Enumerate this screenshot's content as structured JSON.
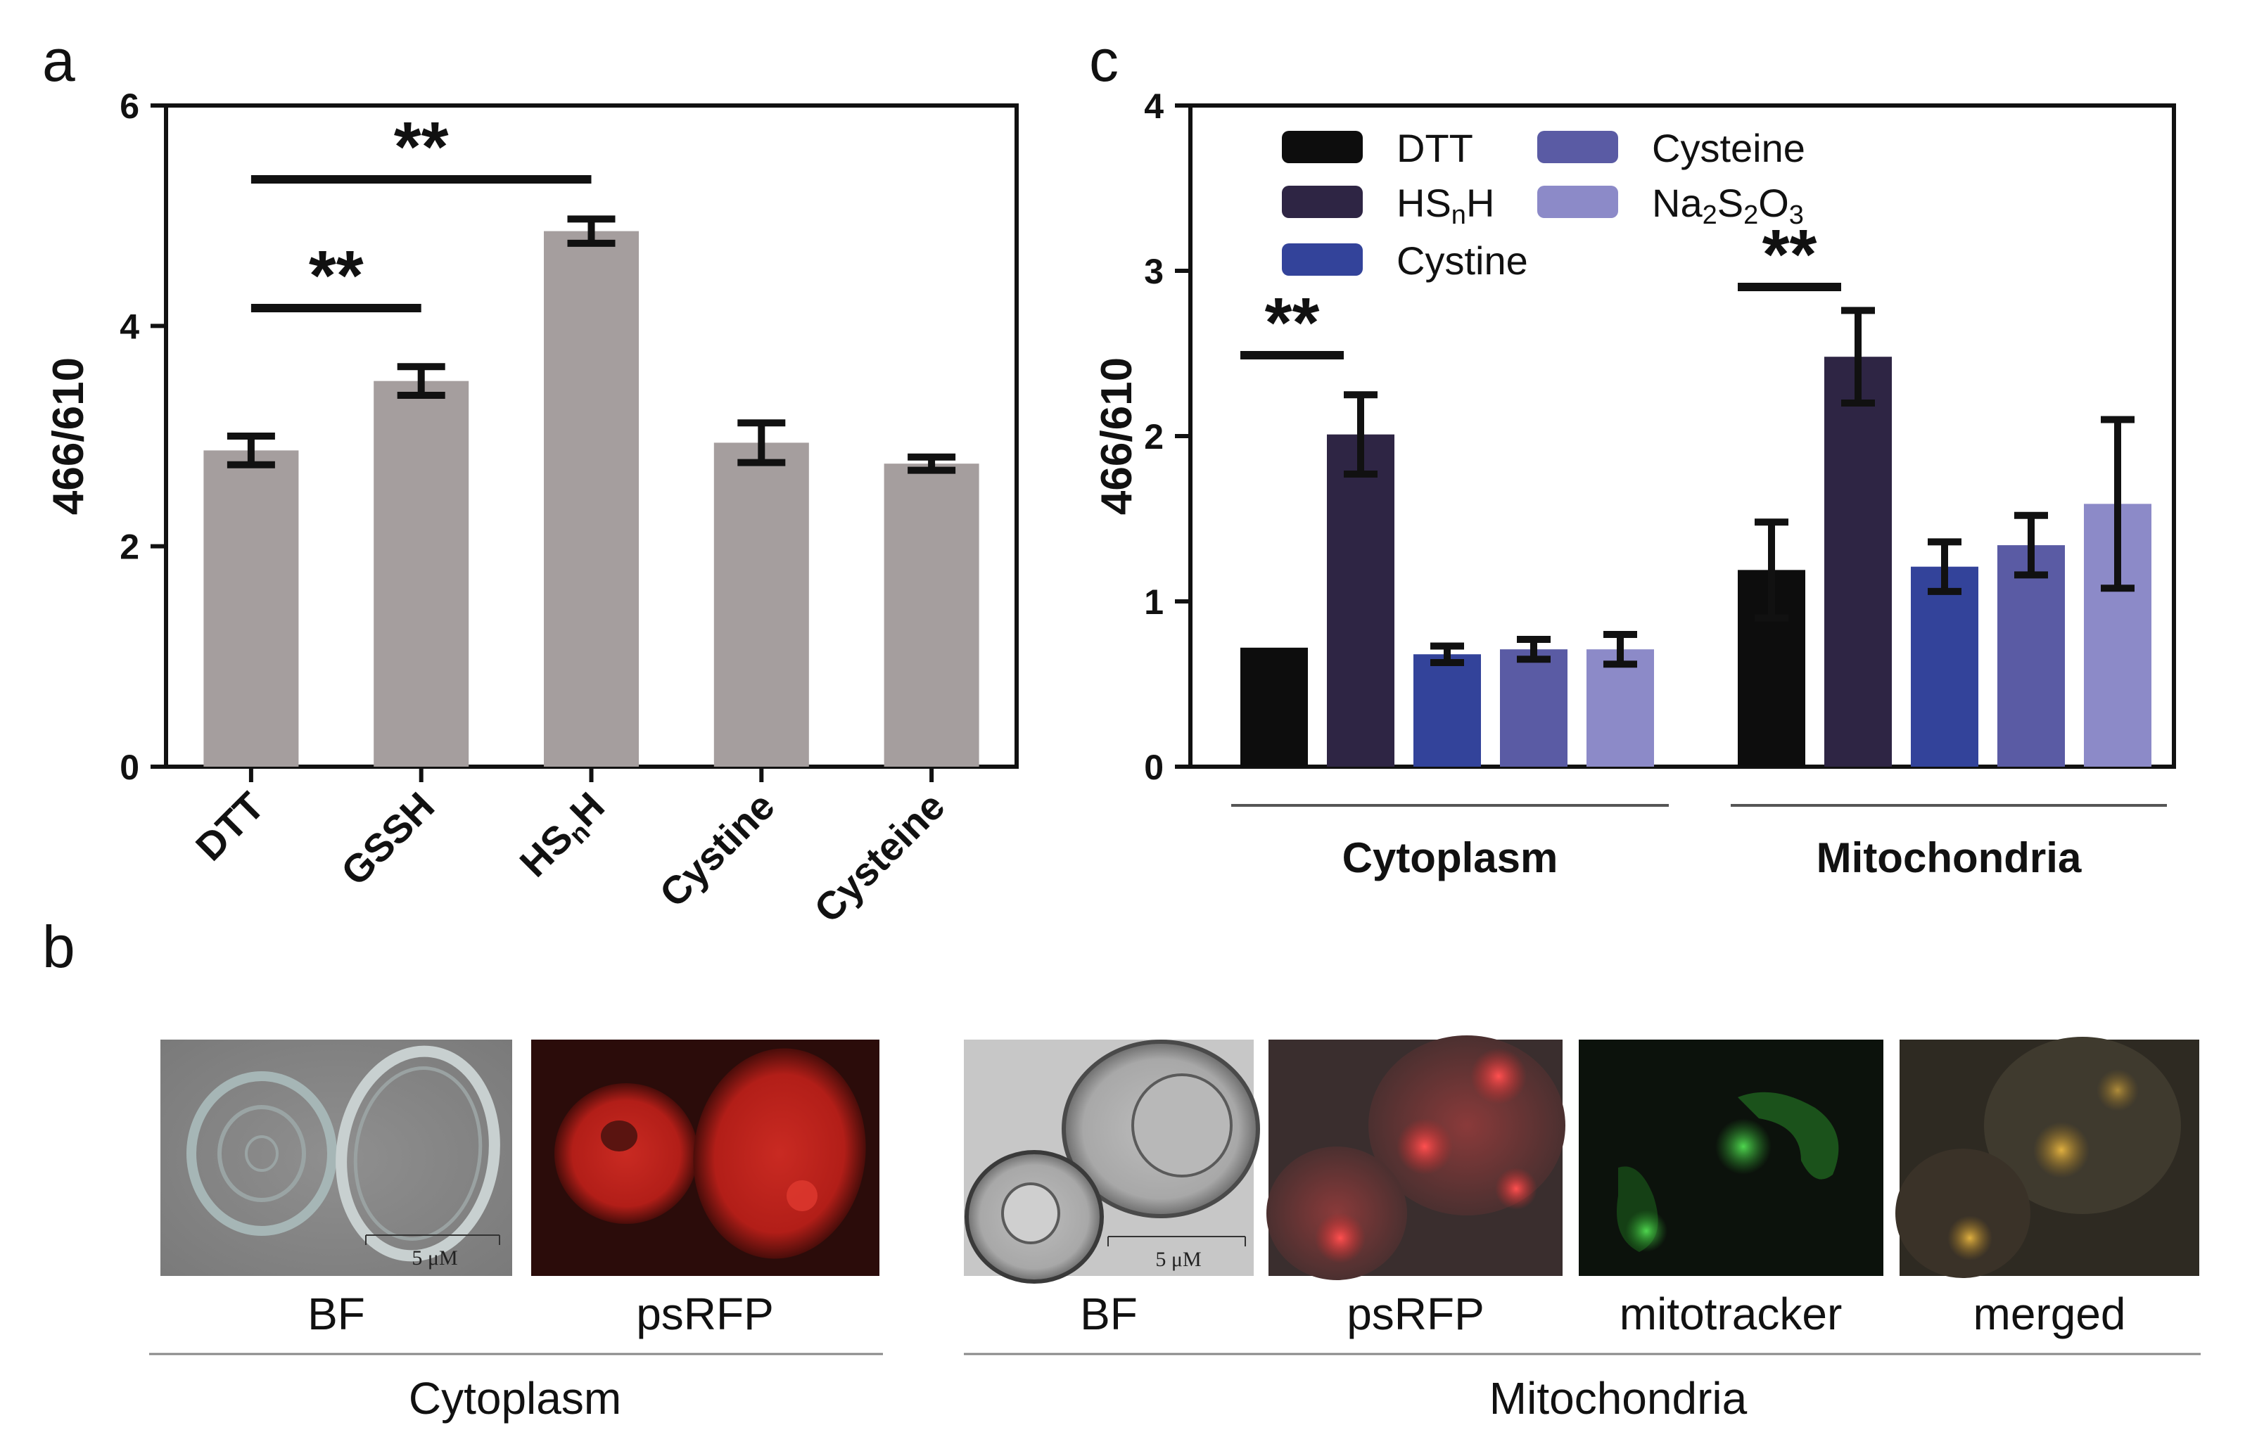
{
  "panels": {
    "a": "a",
    "b": "b",
    "c": "c"
  },
  "chart_data": [
    {
      "id": "a",
      "type": "bar",
      "ylabel": "466/610",
      "ylim": [
        0,
        6
      ],
      "yticks": [
        0,
        2,
        4,
        6
      ],
      "categories": [
        {
          "main": "DTT",
          "sub": ""
        },
        {
          "main": "GSSH",
          "sub": ""
        },
        {
          "main": "HS",
          "sub": "n",
          "tail": "H"
        },
        {
          "main": "Cystine",
          "sub": ""
        },
        {
          "main": "Cysteine",
          "sub": ""
        }
      ],
      "values": [
        2.87,
        3.5,
        4.86,
        2.94,
        2.75
      ],
      "errors": [
        0.13,
        0.13,
        0.11,
        0.18,
        0.06
      ],
      "bar_color": "#a59e9e",
      "significance": [
        {
          "from": 0,
          "to": 2,
          "label": "**"
        },
        {
          "from": 0,
          "to": 1,
          "label": "**"
        }
      ]
    },
    {
      "id": "c",
      "type": "bar",
      "ylabel": "466/610",
      "ylim": [
        0,
        4
      ],
      "yticks": [
        0,
        1,
        2,
        3,
        4
      ],
      "groups": [
        "Cytoplasm",
        "Mitochondria"
      ],
      "series": [
        {
          "name": "DTT",
          "legend": [
            {
              "t": "DTT"
            }
          ],
          "color": "#0d0d0d",
          "values": [
            0.72,
            1.19
          ],
          "errors": [
            0.0,
            0.29
          ]
        },
        {
          "name": "HSnH",
          "legend": [
            {
              "t": "HS"
            },
            {
              "t": "n",
              "sub": true
            },
            {
              "t": "H"
            }
          ],
          "color": "#2e2544",
          "values": [
            2.01,
            2.48
          ],
          "errors": [
            0.24,
            0.28
          ]
        },
        {
          "name": "Cystine",
          "legend": [
            {
              "t": "Cystine"
            }
          ],
          "color": "#33439a",
          "values": [
            0.68,
            1.21
          ],
          "errors": [
            0.05,
            0.15
          ]
        },
        {
          "name": "Cysteine",
          "legend": [
            {
              "t": "Cysteine"
            }
          ],
          "color": "#5a5ba4",
          "values": [
            0.71,
            1.34
          ],
          "errors": [
            0.06,
            0.18
          ]
        },
        {
          "name": "Na2S2O3",
          "legend": [
            {
              "t": "Na"
            },
            {
              "t": "2",
              "sub": true
            },
            {
              "t": "S"
            },
            {
              "t": "2",
              "sub": true
            },
            {
              "t": "O"
            },
            {
              "t": "3",
              "sub": true
            }
          ],
          "color": "#8c8ac8",
          "values": [
            0.71,
            1.59
          ],
          "errors": [
            0.09,
            0.51
          ]
        }
      ],
      "significance": [
        {
          "group": 0,
          "from": 0,
          "to": 1,
          "label": "**"
        },
        {
          "group": 1,
          "from": 0,
          "to": 1,
          "label": "**"
        }
      ]
    }
  ],
  "micrographs": {
    "cytoplasm": {
      "group_label": "Cytoplasm",
      "images": [
        {
          "label": "BF",
          "scale_bar": "5 μM"
        },
        {
          "label": "psRFP"
        }
      ]
    },
    "mitochondria": {
      "group_label": "Mitochondria",
      "images": [
        {
          "label": "BF",
          "scale_bar": "5 μM"
        },
        {
          "label": "psRFP"
        },
        {
          "label": "mitotracker"
        },
        {
          "label": "merged"
        }
      ]
    }
  }
}
